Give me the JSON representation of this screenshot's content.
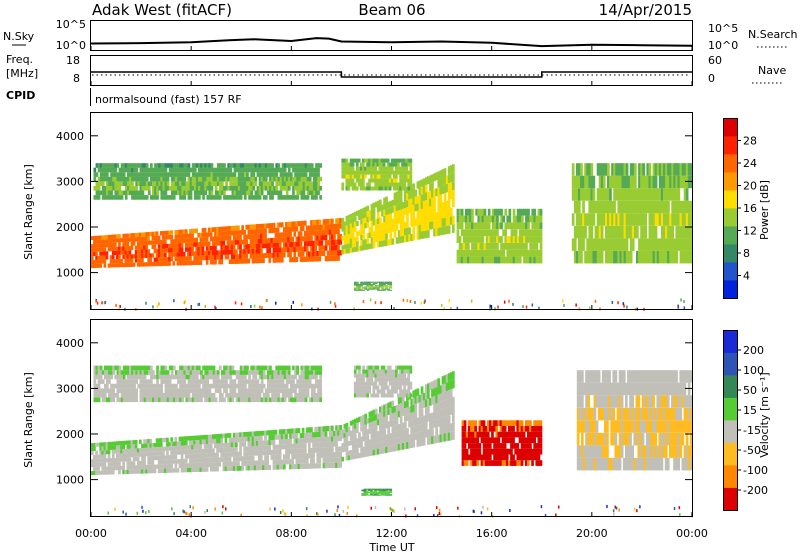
{
  "header": {
    "station": "Adak West (fitACF)",
    "beam": "Beam 06",
    "date": "14/Apr/2015"
  },
  "noise_panel": {
    "left_label": "N.Sky",
    "right_label": "N.Search",
    "left_ticks": [
      "10^5",
      "10^0"
    ],
    "right_ticks": [
      "10^5",
      "10^0"
    ]
  },
  "freq_panel": {
    "left_label_1": "Freq.",
    "left_label_2": "[MHz]",
    "left_ticks": [
      "18",
      "8"
    ],
    "right_label": "Nave",
    "right_ticks": [
      "60",
      "0"
    ],
    "cpid_label": "CPID",
    "cpid_text": "normalsound (fast) 157 RF"
  },
  "x_axis": {
    "label": "Time UT",
    "ticks": [
      "00:00",
      "04:00",
      "08:00",
      "12:00",
      "16:00",
      "20:00",
      "00:00"
    ]
  },
  "y_axis": {
    "label": "Slant Range [km]",
    "ticks": [
      "1000",
      "2000",
      "3000",
      "4000"
    ]
  },
  "colorbars": {
    "power": {
      "label": "Power [dB]",
      "ticks": [
        "4",
        "8",
        "12",
        "16",
        "20",
        "24",
        "28"
      ],
      "colors": [
        "#0022dd",
        "#2255cc",
        "#338866",
        "#55aa55",
        "#99cc33",
        "#ffdd00",
        "#ff9900",
        "#ff6600",
        "#ff2200",
        "#dd0000"
      ]
    },
    "velocity": {
      "label": "Velocity [m s⁻¹]",
      "ticks": [
        "200",
        "100",
        "50",
        "15",
        "-15",
        "-50",
        "-100",
        "-200"
      ],
      "colors": [
        "#1a2ad6",
        "#2e55b5",
        "#338855",
        "#55cc33",
        "#c0c0b8",
        "#ffbb22",
        "#ff8800",
        "#dd0000"
      ]
    }
  },
  "chart_data": [
    {
      "type": "line",
      "panel": "noise",
      "x_unit": "hours UT",
      "ylim": [
        1,
        100000
      ],
      "y_scale": "log",
      "series": [
        {
          "x": [
            0,
            2,
            4,
            5.5,
            6.5,
            8,
            9,
            9.5,
            10,
            12,
            14,
            16,
            18,
            20,
            22,
            24
          ],
          "y": [
            20,
            25,
            40,
            120,
            200,
            80,
            400,
            300,
            60,
            40,
            60,
            30,
            5,
            10,
            8,
            6
          ]
        }
      ]
    },
    {
      "type": "line",
      "panel": "frequency",
      "x_unit": "hours UT",
      "ylim": [
        8,
        18
      ],
      "series": [
        {
          "x": [
            0,
            10,
            10,
            18,
            18,
            24
          ],
          "y": [
            13,
            13,
            10.5,
            10.5,
            13,
            13
          ]
        }
      ]
    },
    {
      "type": "heatmap",
      "panel": "power",
      "x_unit": "hours UT",
      "y_unit": "km",
      "xlim": [
        0,
        24
      ],
      "ylim": [
        180,
        4500
      ],
      "clim": [
        0,
        30
      ],
      "features": [
        {
          "t0": 0.0,
          "t1": 10.0,
          "r0": 1100,
          "r1": 1800,
          "r1_end": 2200,
          "value": 22
        },
        {
          "t0": 0.1,
          "t1": 9.2,
          "r0": 2600,
          "r1": 3400,
          "value": 10
        },
        {
          "t0": 10.0,
          "t1": 14.5,
          "r0": 1400,
          "r1": 2200,
          "r1_end": 3400,
          "value": 14
        },
        {
          "t0": 10.0,
          "t1": 12.8,
          "r0": 2800,
          "r1": 3500,
          "value": 12
        },
        {
          "t0": 14.6,
          "t1": 18.0,
          "r0": 1200,
          "r1": 2400,
          "value": 12
        },
        {
          "t0": 10.5,
          "t1": 12.0,
          "r0": 600,
          "r1": 800,
          "value": 10
        },
        {
          "t0": 19.2,
          "t1": 24.0,
          "r0": 1200,
          "r1": 3400,
          "value": 12
        }
      ]
    },
    {
      "type": "heatmap",
      "panel": "velocity",
      "x_unit": "hours UT",
      "y_unit": "km",
      "xlim": [
        0,
        24
      ],
      "ylim": [
        180,
        4500
      ],
      "clim": [
        -200,
        200
      ],
      "features": [
        {
          "t0": 0.0,
          "t1": 10.0,
          "r0": 1100,
          "r1": 1800,
          "r1_end": 2200,
          "value": 0
        },
        {
          "t0": 0.1,
          "t1": 9.2,
          "r0": 2700,
          "r1": 3500,
          "value": 0
        },
        {
          "t0": 10.0,
          "t1": 14.5,
          "r0": 1400,
          "r1": 2200,
          "r1_end": 3400,
          "value": 0
        },
        {
          "t0": 10.5,
          "t1": 12.8,
          "r0": 2800,
          "r1": 3500,
          "value": 0
        },
        {
          "t0": 14.8,
          "t1": 18.0,
          "r0": 1300,
          "r1": 2300,
          "value": 150
        },
        {
          "t0": 10.8,
          "t1": 12.0,
          "r0": 650,
          "r1": 800,
          "value": -60
        },
        {
          "t0": 19.4,
          "t1": 24.0,
          "r0": 1200,
          "r1": 3400,
          "value": 30
        }
      ]
    }
  ]
}
